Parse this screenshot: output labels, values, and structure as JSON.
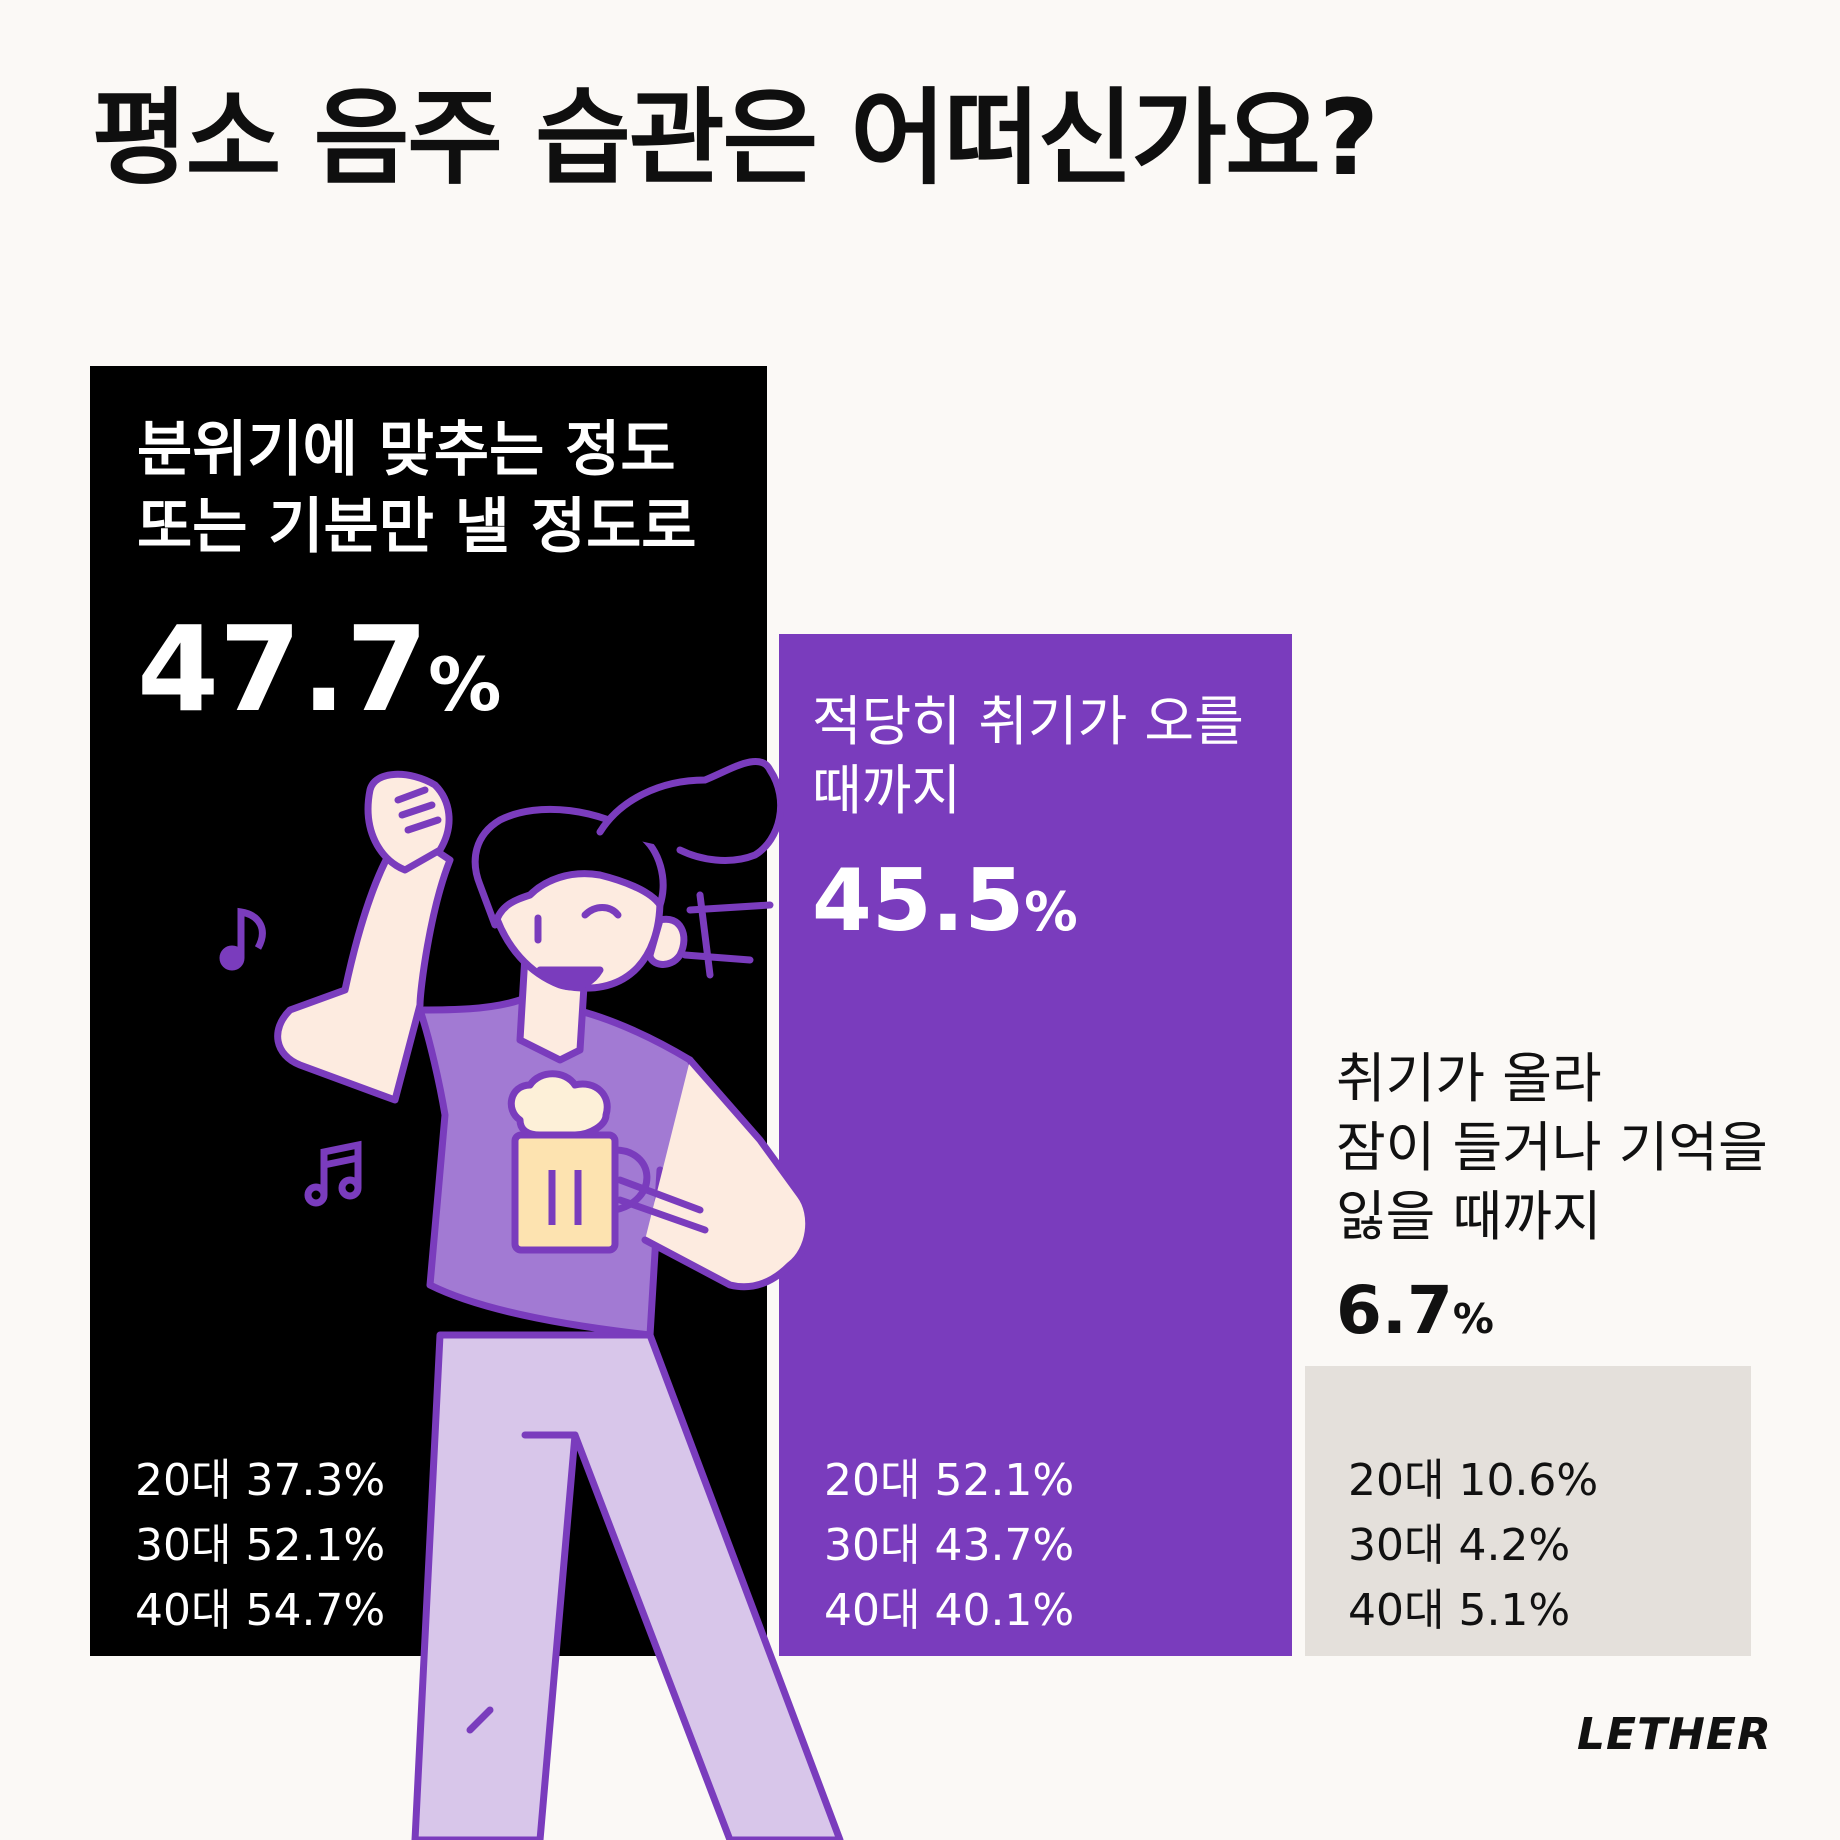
{
  "title": "평소 음주 습관은 어떠신가요?",
  "chart_data": {
    "type": "bar",
    "title": "평소 음주 습관은 어떠신가요?",
    "categories": [
      "분위기에 맞추는 정도 또는 기분만 낼 정도로",
      "적당히 취기가 오를 때까지",
      "취기가 올라 잠이 들거나 기억을 잃을 때까지"
    ],
    "values": [
      47.7,
      45.5,
      6.7
    ],
    "unit": "%",
    "bars": [
      {
        "label_lines": [
          "분위기에 맞추는 정도",
          "또는 기분만 낼 정도로"
        ],
        "value": 47.7,
        "value_text": "47.7",
        "pct": "%",
        "color": "#000000",
        "text_color": "#ffffff",
        "breakdown": [
          "20대 37.3%",
          "30대 52.1%",
          "40대 54.7%"
        ]
      },
      {
        "label_lines": [
          "적당히 취기가 오를",
          "때까지"
        ],
        "value": 45.5,
        "value_text": "45.5",
        "pct": "%",
        "color": "#7a3cbd",
        "text_color": "#ffffff",
        "breakdown": [
          "20대 52.1%",
          "30대 43.7%",
          "40대 40.1%"
        ]
      },
      {
        "label_lines": [
          "취기가 올라",
          "잠이 들거나 기억을",
          "잃을 때까지"
        ],
        "value": 6.7,
        "value_text": "6.7",
        "pct": "%",
        "color": "#e4e0db",
        "text_color": "#111111",
        "breakdown": [
          "20대 10.6%",
          "30대 4.2%",
          "40대 5.1%"
        ]
      }
    ],
    "grid": false,
    "legend": "none"
  },
  "logo": "LETHER",
  "illustration": {
    "icons": [
      "woman-icon",
      "beer-mug-icon",
      "music-note-icon",
      "music-notes-icon"
    ],
    "accent": "#7a3cbd"
  }
}
